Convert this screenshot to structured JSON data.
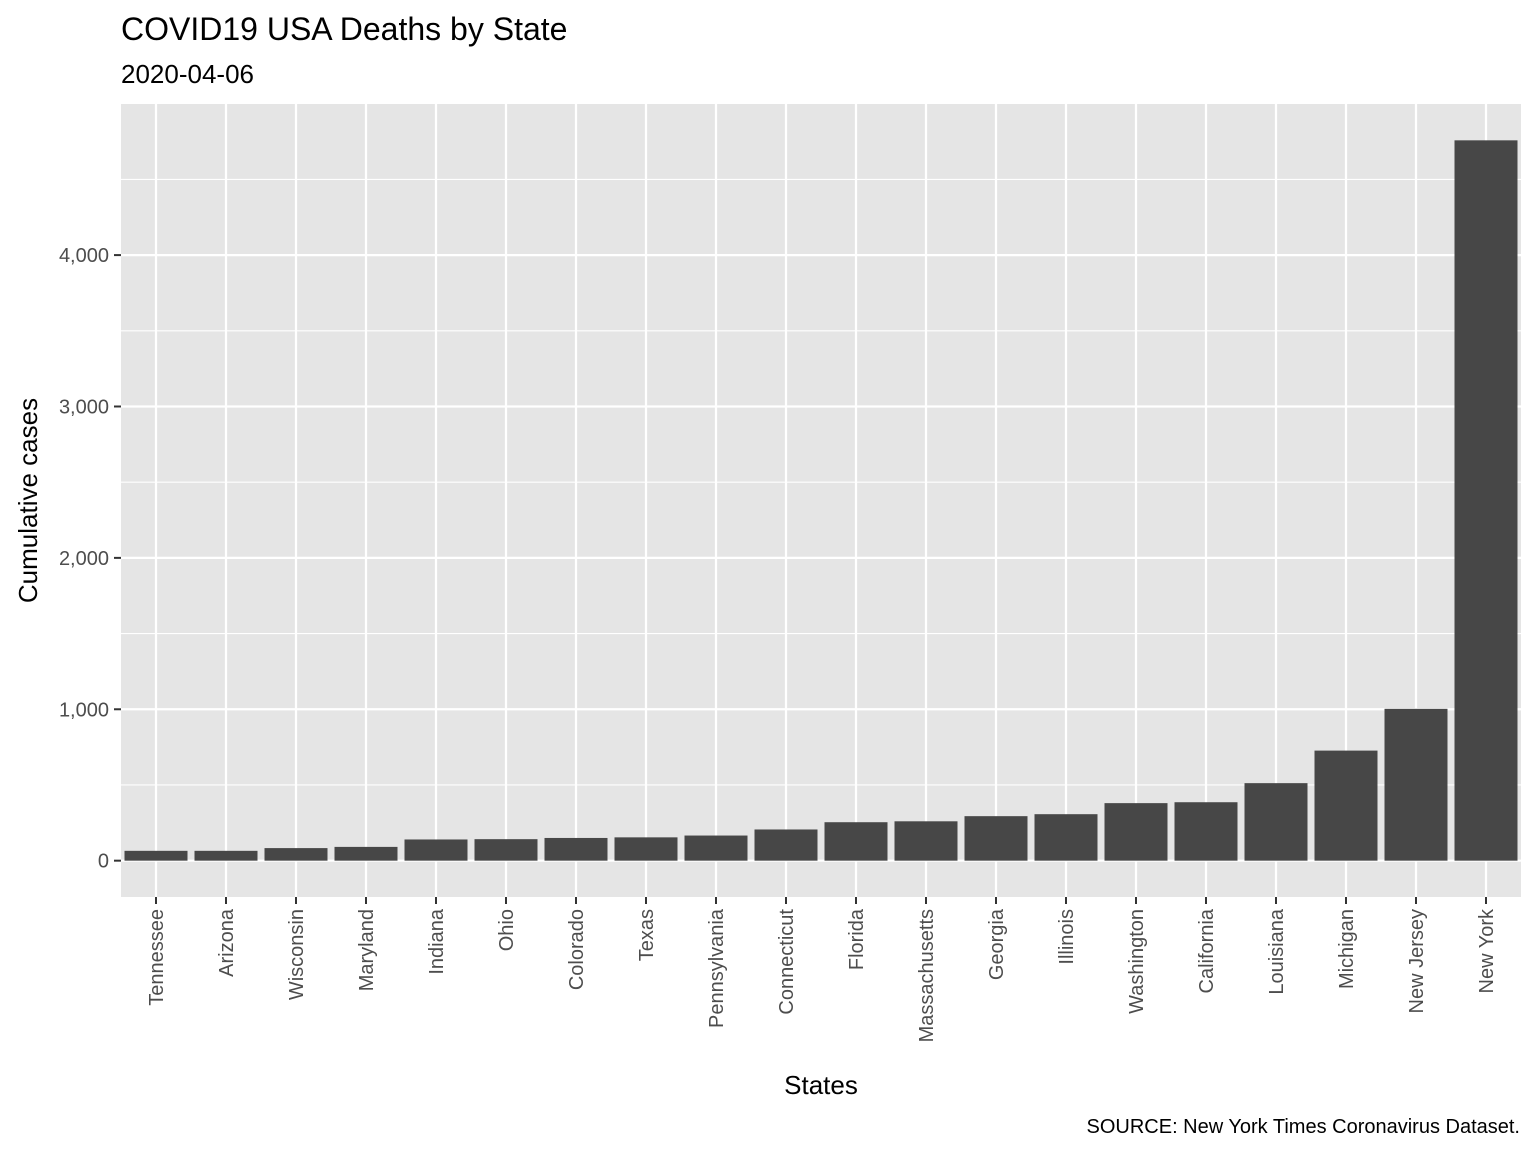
{
  "chart_data": {
    "type": "bar",
    "title": "COVID19 USA Deaths by State",
    "subtitle": "2020-04-06",
    "xlabel": "States",
    "ylabel": "Cumulative cases",
    "caption": "SOURCE: New York Times Coronavirus Dataset.",
    "categories": [
      "Tennessee",
      "Arizona",
      "Wisconsin",
      "Maryland",
      "Indiana",
      "Ohio",
      "Colorado",
      "Texas",
      "Pennsylvania",
      "Connecticut",
      "Florida",
      "Massachusetts",
      "Georgia",
      "Illinois",
      "Washington",
      "California",
      "Louisiana",
      "Michigan",
      "New Jersey",
      "New York"
    ],
    "values": [
      65,
      65,
      83,
      91,
      140,
      142,
      150,
      154,
      166,
      206,
      254,
      260,
      294,
      307,
      380,
      386,
      512,
      727,
      1003,
      4758
    ],
    "ylim": [
      -240,
      4998
    ],
    "yticks": [
      0,
      1000,
      2000,
      3000,
      4000
    ],
    "ytick_labels": [
      "0",
      "1,000",
      "2,000",
      "3,000",
      "4,000"
    ],
    "grid": true,
    "colors": {
      "bar": "#474747",
      "panel": "#e5e5e5",
      "grid": "#ffffff",
      "tick_text": "#4d4d4d"
    }
  }
}
